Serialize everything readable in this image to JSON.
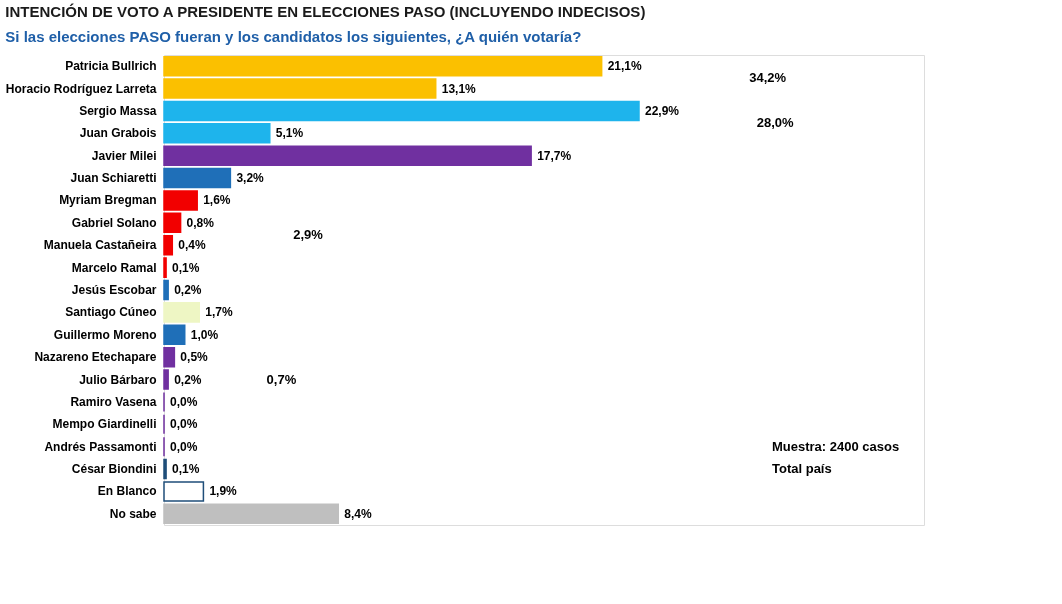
{
  "chart_data": {
    "type": "bar",
    "orientation": "horizontal",
    "title": "INTENCIÓN DE VOTO A PRESIDENTE EN ELECCIONES PASO (INCLUYENDO INDECISOS)",
    "subtitle": "Si las elecciones PASO fueran y los candidatos los siguientes, ¿A quién votaría?",
    "categories": [
      "Patricia Bullrich",
      "Horacio Rodríguez Larreta",
      "Sergio Massa",
      "Juan Grabois",
      "Javier Milei",
      "Juan Schiaretti",
      "Myriam Bregman",
      "Gabriel Solano",
      "Manuela Castañeira",
      "Marcelo Ramal",
      "Jesús Escobar",
      "Santiago Cúneo",
      "Guillermo Moreno",
      "Nazareno Etechapare",
      "Julio Bárbaro",
      "Ramiro Vasena",
      "Mempo Giardinelli",
      "Andrés Passamonti",
      "César Biondini",
      "En Blanco",
      "No sabe"
    ],
    "values": [
      21.1,
      13.1,
      22.9,
      5.1,
      17.7,
      3.2,
      1.6,
      0.8,
      0.4,
      0.1,
      0.2,
      1.7,
      1.0,
      0.5,
      0.2,
      0.0,
      0.0,
      0.0,
      0.1,
      1.9,
      8.4
    ],
    "value_labels": [
      "21,1%",
      "13,1%",
      "22,9%",
      "5,1%",
      "17,7%",
      "3,2%",
      "1,6%",
      "0,8%",
      "0,4%",
      "0,1%",
      "0,2%",
      "1,7%",
      "1,0%",
      "0,5%",
      "0,2%",
      "0,0%",
      "0,0%",
      "0,0%",
      "0,1%",
      "1,9%",
      "8,4%"
    ],
    "colors": [
      "#fbc000",
      "#fbc000",
      "#1eb4ec",
      "#1eb4ec",
      "#7030a0",
      "#1f6fb8",
      "#f20000",
      "#f20000",
      "#f20000",
      "#f20000",
      "#1f6fb8",
      "#eef6c4",
      "#1f6fb8",
      "#7030a0",
      "#7030a0",
      "#7030a0",
      "#7030a0",
      "#7030a0",
      "#1f4e79",
      "#ffffff",
      "#bfbfbf"
    ],
    "annotations": [
      "34,2%",
      "28,0%",
      "2,9%",
      "0,7%",
      "Muestra: 2400 casos",
      "Total país"
    ],
    "grid": false
  }
}
